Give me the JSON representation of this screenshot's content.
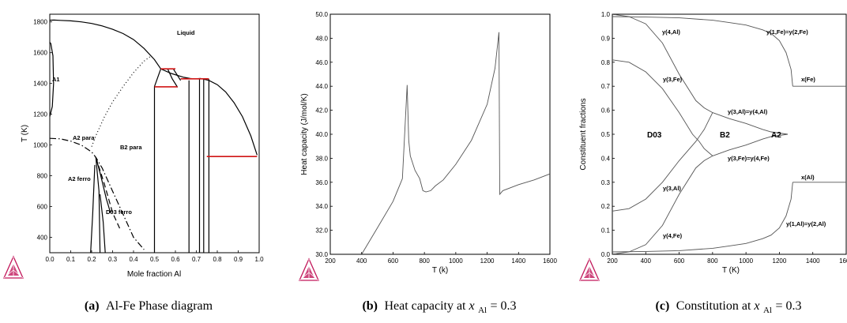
{
  "captions": {
    "a": {
      "letter": "(a)",
      "text": "Al-Fe Phase diagram"
    },
    "b": {
      "letter": "(b)",
      "text_pre": "Heat capacity at ",
      "var": "x",
      "sub": "Al",
      "text_post": " = 0.3"
    },
    "c": {
      "letter": "(c)",
      "text_pre": "Constitution at ",
      "var": "x",
      "sub": "Al",
      "text_post": " = 0.3"
    }
  },
  "colors": {
    "curve": "#000000",
    "tie_line": "#d01515",
    "thin_curve": "#555555",
    "logo": "#c2185b"
  },
  "chart_data": [
    {
      "type": "line",
      "subtype": "phase-diagram",
      "xlabel": "Mole fraction Al",
      "ylabel": "T (K)",
      "xlim": [
        0,
        1
      ],
      "ylim": [
        300,
        1850
      ],
      "xticks": [
        "0.0",
        "0.1",
        "0.2",
        "0.3",
        "0.4",
        "0.5",
        "0.6",
        "0.7",
        "0.8",
        "0.9",
        "1.0"
      ],
      "yticks": [
        "400",
        "600",
        "800",
        "1000",
        "1200",
        "1400",
        "1600",
        "1800"
      ],
      "annotations": [
        "Liquid",
        "A2 para",
        "B2 para",
        "A2 ferro",
        "D03 ferro",
        "A1"
      ],
      "series": [
        {
          "style": "solid",
          "x": [
            0,
            0.02,
            0.05,
            0.1,
            0.15,
            0.2,
            0.25,
            0.3,
            0.35,
            0.4,
            0.45,
            0.5,
            0.53
          ],
          "y": [
            1811,
            1812,
            1810,
            1807,
            1800,
            1790,
            1774,
            1752,
            1724,
            1685,
            1628,
            1555,
            1495
          ]
        },
        {
          "style": "solid",
          "x": [
            0.53,
            0.58,
            0.64,
            0.67,
            0.69,
            0.72,
            0.76,
            0.8,
            0.84,
            0.88,
            0.92,
            0.96,
            0.99
          ],
          "y": [
            1495,
            1465,
            1440,
            1432,
            1430,
            1432,
            1420,
            1392,
            1345,
            1275,
            1185,
            1060,
            935
          ]
        },
        {
          "style": "solid",
          "x": [
            0.76,
            0.76
          ],
          "y": [
            300,
            1428
          ]
        },
        {
          "style": "solid",
          "x": [
            0.735,
            0.735
          ],
          "y": [
            300,
            1432
          ]
        },
        {
          "style": "solid",
          "x": [
            0.715,
            0.715
          ],
          "y": [
            300,
            1432
          ]
        },
        {
          "style": "solid",
          "x": [
            0.665,
            0.665
          ],
          "y": [
            300,
            1420
          ]
        },
        {
          "style": "solid",
          "x": [
            0.5,
            0.5,
            0.53
          ],
          "y": [
            300,
            1380,
            1495
          ]
        },
        {
          "style": "solid",
          "x": [
            0.563,
            0.585,
            0.61
          ],
          "y": [
            1495,
            1430,
            1375
          ]
        },
        {
          "style": "solid",
          "x": [
            0.59,
            0.625
          ],
          "y": [
            1495,
            1420
          ]
        },
        {
          "style": "solid",
          "x": [
            0.0,
            0.012,
            0.018,
            0.015,
            0.005,
            0.0
          ],
          "y": [
            1185,
            1250,
            1400,
            1580,
            1660,
            1667
          ]
        },
        {
          "style": "dotted",
          "x": [
            0.2,
            0.22,
            0.26,
            0.3,
            0.35,
            0.4,
            0.45,
            0.48
          ],
          "y": [
            990,
            1060,
            1180,
            1280,
            1380,
            1470,
            1545,
            1575
          ]
        },
        {
          "style": "dashdot",
          "x": [
            0.0,
            0.05,
            0.1,
            0.15,
            0.2,
            0.22,
            0.25,
            0.3,
            0.35,
            0.4,
            0.45
          ],
          "y": [
            1043,
            1040,
            1025,
            1000,
            955,
            920,
            850,
            700,
            550,
            400,
            320
          ]
        },
        {
          "style": "dashed",
          "x": [
            0.22,
            0.26,
            0.3,
            0.34
          ],
          "y": [
            920,
            750,
            560,
            440
          ]
        },
        {
          "style": "solid",
          "x": [
            0.22,
            0.235,
            0.24
          ],
          "y": [
            920,
            700,
            300
          ]
        },
        {
          "style": "solid",
          "x": [
            0.22,
            0.24,
            0.27,
            0.29
          ],
          "y": [
            920,
            820,
            650,
            560
          ]
        },
        {
          "style": "solid",
          "x": [
            0.24,
            0.255,
            0.265
          ],
          "y": [
            680,
            500,
            300
          ]
        },
        {
          "style": "solid",
          "x": [
            0.195,
            0.205,
            0.215
          ],
          "y": [
            300,
            550,
            870
          ]
        }
      ],
      "tie_lines": [
        {
          "x": [
            0.53,
            0.6
          ],
          "y": [
            1495,
            1495
          ]
        },
        {
          "x": [
            0.5,
            0.61
          ],
          "y": [
            1378,
            1378
          ]
        },
        {
          "x": [
            0.625,
            0.76
          ],
          "y": [
            1430,
            1430
          ]
        },
        {
          "x": [
            0.75,
            0.99
          ],
          "y": [
            925,
            925
          ]
        }
      ]
    },
    {
      "type": "line",
      "xlabel": "T (k)",
      "ylabel": "Heat capacity (J/mol/K)",
      "xlim": [
        200,
        1600
      ],
      "ylim": [
        30,
        50
      ],
      "xticks": [
        "200",
        "400",
        "600",
        "800",
        "1000",
        "1200",
        "1400",
        "1600"
      ],
      "yticks": [
        "30.0",
        "32.0",
        "34.0",
        "36.0",
        "38.0",
        "40.0",
        "42.0",
        "44.0",
        "46.0",
        "48.0",
        "50.0"
      ],
      "series": [
        {
          "x": [
            400,
            500,
            600,
            660,
            690,
            700,
            710,
            740,
            770,
            790,
            810,
            840,
            870,
            920,
            1000,
            1100,
            1200,
            1250,
            1275,
            1280,
            1300,
            1400,
            1500,
            1600
          ],
          "y": [
            30.0,
            32.2,
            34.4,
            36.3,
            44.1,
            39.5,
            38.2,
            37.0,
            36.3,
            35.3,
            35.2,
            35.3,
            35.7,
            36.2,
            37.5,
            39.5,
            42.5,
            45.5,
            48.5,
            35.0,
            35.3,
            35.8,
            36.2,
            36.7
          ]
        }
      ]
    },
    {
      "type": "line",
      "xlabel": "T (K)",
      "ylabel": "Constituent fractions",
      "xlim": [
        200,
        1600
      ],
      "ylim": [
        0,
        1
      ],
      "xticks": [
        "200",
        "400",
        "600",
        "800",
        "1000",
        "1200",
        "1400",
        "1600"
      ],
      "yticks": [
        "0.0",
        "0.1",
        "0.2",
        "0.3",
        "0.4",
        "0.5",
        "0.6",
        "0.7",
        "0.8",
        "0.9",
        "1.0"
      ],
      "annotations": [
        "y(4,Al)",
        "y(1,Fe)=y(2,Fe)",
        "y(3,Fe)",
        "x(Fe)",
        "y(3,Al)=y(4,Al)",
        "D03",
        "B2",
        "A2",
        "y(3,Fe)=y(4,Fe)",
        "x(Al)",
        "y(3,Al)",
        "y(4,Fe)",
        "y(1,Al)=y(2,Al)"
      ],
      "series": [
        {
          "name": "y(1,Fe)=y(2,Fe)",
          "x": [
            200,
            400,
            600,
            800,
            900,
            1000,
            1100,
            1150,
            1200,
            1240,
            1270,
            1280
          ],
          "y": [
            0.99,
            0.988,
            0.985,
            0.975,
            0.965,
            0.955,
            0.935,
            0.92,
            0.89,
            0.84,
            0.77,
            0.7
          ]
        },
        {
          "name": "x(Fe)",
          "x": [
            1280,
            1600
          ],
          "y": [
            0.7,
            0.7
          ]
        },
        {
          "name": "y(1,Al)=y(2,Al)",
          "x": [
            200,
            400,
            600,
            800,
            900,
            1000,
            1100,
            1150,
            1200,
            1240,
            1270,
            1280
          ],
          "y": [
            0.01,
            0.012,
            0.015,
            0.025,
            0.035,
            0.045,
            0.065,
            0.08,
            0.11,
            0.16,
            0.23,
            0.3
          ]
        },
        {
          "name": "x(Al)",
          "x": [
            1280,
            1600
          ],
          "y": [
            0.3,
            0.3
          ]
        },
        {
          "name": "y(4,Al)",
          "x": [
            200,
            300,
            400,
            500,
            600,
            700,
            750,
            800
          ],
          "y": [
            1.0,
            0.99,
            0.96,
            0.88,
            0.75,
            0.64,
            0.61,
            0.59
          ]
        },
        {
          "name": "y(3,Al)=y(4,Al)",
          "x": [
            800,
            900,
            1000,
            1100,
            1150,
            1200,
            1250
          ],
          "y": [
            0.59,
            0.565,
            0.545,
            0.52,
            0.51,
            0.505,
            0.5
          ]
        },
        {
          "name": "y(3,Fe)",
          "x": [
            200,
            300,
            400,
            500,
            600,
            680,
            720,
            750,
            800
          ],
          "y": [
            0.81,
            0.8,
            0.76,
            0.69,
            0.59,
            0.5,
            0.47,
            0.44,
            0.41
          ]
        },
        {
          "name": "y(3,Fe)=y(4,Fe)",
          "x": [
            800,
            900,
            1000,
            1100,
            1150,
            1200,
            1250
          ],
          "y": [
            0.41,
            0.435,
            0.455,
            0.48,
            0.49,
            0.495,
            0.5
          ]
        },
        {
          "name": "y(3,Al)",
          "x": [
            200,
            300,
            400,
            500,
            600,
            700,
            750,
            800
          ],
          "y": [
            0.18,
            0.19,
            0.23,
            0.3,
            0.39,
            0.47,
            0.52,
            0.59
          ]
        },
        {
          "name": "y(4,Fe)",
          "x": [
            200,
            300,
            400,
            500,
            600,
            700,
            750,
            800
          ],
          "y": [
            0.0,
            0.01,
            0.04,
            0.12,
            0.25,
            0.36,
            0.39,
            0.41
          ]
        }
      ]
    }
  ]
}
